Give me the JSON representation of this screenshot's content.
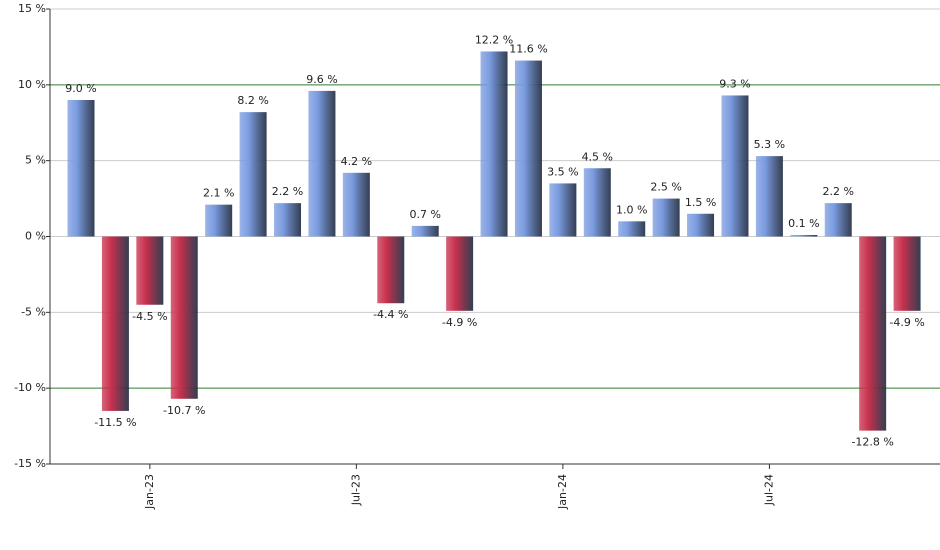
{
  "chart_data": {
    "type": "bar",
    "categories": [
      null,
      null,
      "Jan-23",
      null,
      null,
      null,
      null,
      null,
      "Jul-23",
      null,
      null,
      null,
      null,
      null,
      "Jan-24",
      null,
      null,
      null,
      null,
      null,
      "Jul-24",
      null,
      null,
      null,
      null
    ],
    "values": [
      9.0,
      -11.5,
      -4.5,
      -10.7,
      2.1,
      8.2,
      2.2,
      9.6,
      4.2,
      -4.4,
      0.7,
      -4.9,
      12.2,
      11.6,
      3.5,
      4.5,
      1.0,
      2.5,
      1.5,
      9.3,
      5.3,
      0.1,
      2.2,
      -12.8,
      -4.9
    ],
    "value_labels": [
      "9.0 %",
      "-11.5 %",
      "-4.5 %",
      "-10.7 %",
      "2.1 %",
      "8.2 %",
      "2.2 %",
      "9.6 %",
      "4.2 %",
      "-4.4 %",
      "0.7 %",
      "-4.9 %",
      "12.2 %",
      "11.6 %",
      "3.5 %",
      "4.5 %",
      "1.0 %",
      "2.5 %",
      "1.5 %",
      "9.3 %",
      "5.3 %",
      "0.1 %",
      "2.2 %",
      "-12.8 %",
      "-4.9 %"
    ],
    "positive_color": "#7a9be0",
    "negative_color": "#c8304c",
    "ylim": [
      -15,
      15
    ],
    "yticks": [
      {
        "value": -15,
        "label": "-15 %"
      },
      {
        "value": -10,
        "label": "-10 %"
      },
      {
        "value": -5,
        "label": "-5 %"
      },
      {
        "value": 0,
        "label": "0 %"
      },
      {
        "value": 5,
        "label": "5 %"
      },
      {
        "value": 10,
        "label": "10 %"
      },
      {
        "value": 15,
        "label": "15 %"
      }
    ],
    "grid": true,
    "grid_colors": [
      "#cccccc",
      "#2e7d32",
      "#cccccc",
      "#cccccc",
      "#cccccc",
      "#2e7d32",
      "#cccccc"
    ]
  }
}
